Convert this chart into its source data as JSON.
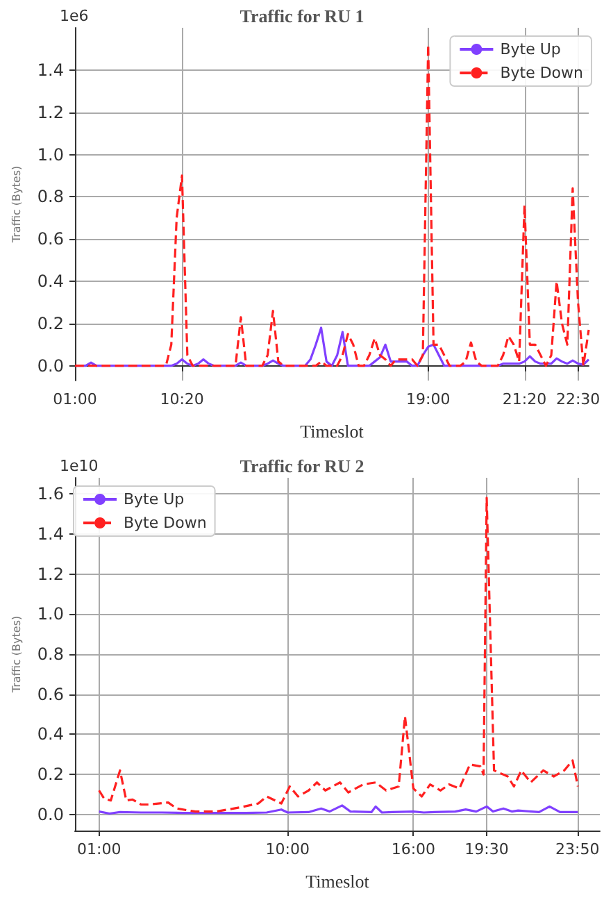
{
  "chart_data": [
    {
      "type": "line",
      "title": "Traffic for RU 1",
      "xlabel": "Timeslot",
      "ylabel": "Traffic (Bytes)",
      "annotations": [
        "1e6"
      ],
      "categories": [
        "01:00",
        null,
        null,
        null,
        null,
        null,
        null,
        null,
        null,
        null,
        null,
        null,
        null,
        null,
        null,
        null,
        null,
        null,
        null,
        null,
        "10:20",
        null,
        null,
        null,
        null,
        null,
        null,
        null,
        null,
        null,
        null,
        null,
        null,
        null,
        null,
        null,
        null,
        null,
        null,
        null,
        null,
        null,
        null,
        null,
        null,
        null,
        null,
        null,
        null,
        null,
        null,
        null,
        null,
        null,
        null,
        null,
        null,
        null,
        null,
        null,
        null,
        null,
        null,
        null,
        null,
        null,
        "19:00",
        null,
        null,
        null,
        null,
        null,
        null,
        null,
        null,
        null,
        null,
        null,
        null,
        null,
        null,
        null,
        null,
        null,
        "21:20",
        null,
        null,
        null,
        null,
        null,
        null,
        null,
        null,
        null,
        "22:30",
        null,
        null
      ],
      "series": [
        {
          "name": "Byte Up",
          "color": "#8040ff",
          "line_style": "solid",
          "values": [
            0,
            0,
            0,
            0.015,
            0,
            0,
            0,
            0,
            0,
            0,
            0,
            0,
            0,
            0,
            0,
            0,
            0,
            0,
            0,
            0.01,
            0.03,
            0.01,
            0,
            0.01,
            0.03,
            0.01,
            0,
            0,
            0,
            0,
            0,
            0.015,
            0,
            0,
            0,
            0,
            0.01,
            0.025,
            0.01,
            0,
            0,
            0,
            0,
            0,
            0.03,
            0.1,
            0.18,
            0.02,
            0,
            0.05,
            0.16,
            0,
            0,
            0,
            0,
            0,
            0.02,
            0.04,
            0.1,
            0.02,
            0.02,
            0.02,
            0.02,
            0,
            0,
            0.05,
            0.09,
            0.1,
            0.05,
            0,
            0,
            0,
            0,
            0,
            0,
            0,
            0,
            0,
            0,
            0,
            0.01,
            0.01,
            0.01,
            0.01,
            0.02,
            0.045,
            0.02,
            0.01,
            0.01,
            0.01,
            0.035,
            0.02,
            0.01,
            0.025,
            0.01,
            0.005,
            0.03
          ]
        },
        {
          "name": "Byte Down",
          "color": "#ff2020",
          "line_style": "dashed",
          "values": [
            0,
            0,
            0,
            0,
            0,
            0,
            0,
            0,
            0,
            0,
            0,
            0,
            0,
            0,
            0,
            0,
            0,
            0,
            0.1,
            0.7,
            0.9,
            0.05,
            0,
            0,
            0,
            0,
            0,
            0,
            0,
            0,
            0,
            0.23,
            0,
            0,
            0,
            0,
            0.05,
            0.26,
            0.02,
            0,
            0,
            0,
            0,
            0,
            0,
            0,
            0.02,
            0,
            0,
            0,
            0.05,
            0.15,
            0.1,
            0,
            0,
            0.05,
            0.13,
            0.05,
            0.03,
            0,
            0.03,
            0.03,
            0.03,
            0.03,
            0,
            0.05,
            1.52,
            0.1,
            0.1,
            0.05,
            0,
            0,
            0,
            0.02,
            0.11,
            0.02,
            0,
            0,
            0,
            0,
            0.05,
            0.14,
            0.1,
            0.02,
            0.76,
            0.1,
            0.1,
            0.05,
            0,
            0.05,
            0.4,
            0.2,
            0.1,
            0.84,
            0.3,
            0,
            0.17
          ]
        }
      ],
      "ylim": [
        -0.07,
        1.6
      ],
      "yticks": [
        {
          "value": 0,
          "label": "0.0"
        },
        {
          "value": 0.2,
          "label": "0.2"
        },
        {
          "value": 0.4,
          "label": "0.4"
        },
        {
          "value": 0.6,
          "label": "0.6"
        },
        {
          "value": 0.8,
          "label": "0.8"
        },
        {
          "value": 1.0,
          "label": "1.0"
        },
        {
          "value": 1.2,
          "label": "1.2"
        },
        {
          "value": 1.4,
          "label": "1.4"
        }
      ],
      "grid": true,
      "legend": "top right"
    },
    {
      "type": "line",
      "title": "Traffic for RU 2",
      "xlabel": "Timeslot",
      "ylabel": "Traffic (Bytes)",
      "annotations": [
        "1e10"
      ],
      "series": [
        {
          "name": "Byte Up",
          "color": "#8040ff",
          "line_style": "solid",
          "x": [
            1.0,
            1.5,
            2.0,
            3.0,
            4.0,
            5.0,
            6.0,
            7.0,
            8.0,
            9.0,
            9.7,
            10.0,
            11.0,
            11.6,
            12.0,
            12.6,
            13.0,
            14.0,
            14.2,
            14.5,
            15.0,
            16.0,
            16.5,
            17.0,
            18.0,
            18.5,
            19.0,
            19.5,
            19.8,
            20.3,
            20.7,
            21.0,
            22.0,
            22.5,
            23.0,
            23.85
          ],
          "values": [
            0.015,
            0.005,
            0.012,
            0.01,
            0.01,
            0.008,
            0.008,
            0.008,
            0.008,
            0.01,
            0.025,
            0.01,
            0.012,
            0.03,
            0.015,
            0.045,
            0.015,
            0.012,
            0.04,
            0.01,
            0.012,
            0.015,
            0.01,
            0.012,
            0.015,
            0.025,
            0.015,
            0.04,
            0.015,
            0.03,
            0.015,
            0.02,
            0.012,
            0.04,
            0.012,
            0.012
          ]
        },
        {
          "name": "Byte Down",
          "color": "#ff2020",
          "line_style": "dashed",
          "x": [
            1.0,
            1.24,
            1.56,
            2.0,
            2.3,
            2.6,
            3.0,
            3.4,
            4.3,
            4.7,
            5.6,
            6.6,
            7.7,
            8.6,
            9.0,
            9.7,
            10.1,
            10.5,
            11.0,
            11.4,
            11.8,
            12.5,
            12.9,
            13.6,
            14.2,
            14.7,
            15.3,
            15.6,
            16.0,
            16.4,
            16.8,
            17.3,
            17.7,
            18.2,
            18.7,
            19.2,
            19.35,
            19.5,
            19.85,
            20.5,
            20.8,
            21.15,
            21.6,
            22.2,
            22.7,
            23.2,
            23.6,
            23.85
          ],
          "values": [
            0.12,
            0.08,
            0.07,
            0.22,
            0.07,
            0.075,
            0.05,
            0.05,
            0.06,
            0.03,
            0.015,
            0.015,
            0.035,
            0.055,
            0.09,
            0.055,
            0.14,
            0.09,
            0.12,
            0.16,
            0.12,
            0.16,
            0.11,
            0.15,
            0.16,
            0.12,
            0.14,
            0.49,
            0.13,
            0.09,
            0.15,
            0.12,
            0.15,
            0.13,
            0.25,
            0.24,
            0.2,
            1.58,
            0.22,
            0.19,
            0.14,
            0.22,
            0.16,
            0.22,
            0.19,
            0.22,
            0.27,
            0.14
          ]
        }
      ],
      "xlim": [
        -0.15,
        24.9
      ],
      "xticks": [
        {
          "value": 1,
          "label": "01:00"
        },
        {
          "value": 10,
          "label": "10:00"
        },
        {
          "value": 16,
          "label": "16:00"
        },
        {
          "value": 19.5,
          "label": "19:30"
        },
        {
          "value": 23.833,
          "label": "23:50"
        }
      ],
      "ylim": [
        -0.08,
        1.68
      ],
      "yticks": [
        {
          "value": 0,
          "label": "0.0"
        },
        {
          "value": 0.2,
          "label": "0.2"
        },
        {
          "value": 0.4,
          "label": "0.4"
        },
        {
          "value": 0.6,
          "label": "0.6"
        },
        {
          "value": 0.8,
          "label": "0.8"
        },
        {
          "value": 1.0,
          "label": "1.0"
        },
        {
          "value": 1.2,
          "label": "1.2"
        },
        {
          "value": 1.4,
          "label": "1.4"
        },
        {
          "value": 1.6,
          "label": "1.6"
        }
      ],
      "grid": true,
      "legend": "top left"
    }
  ]
}
